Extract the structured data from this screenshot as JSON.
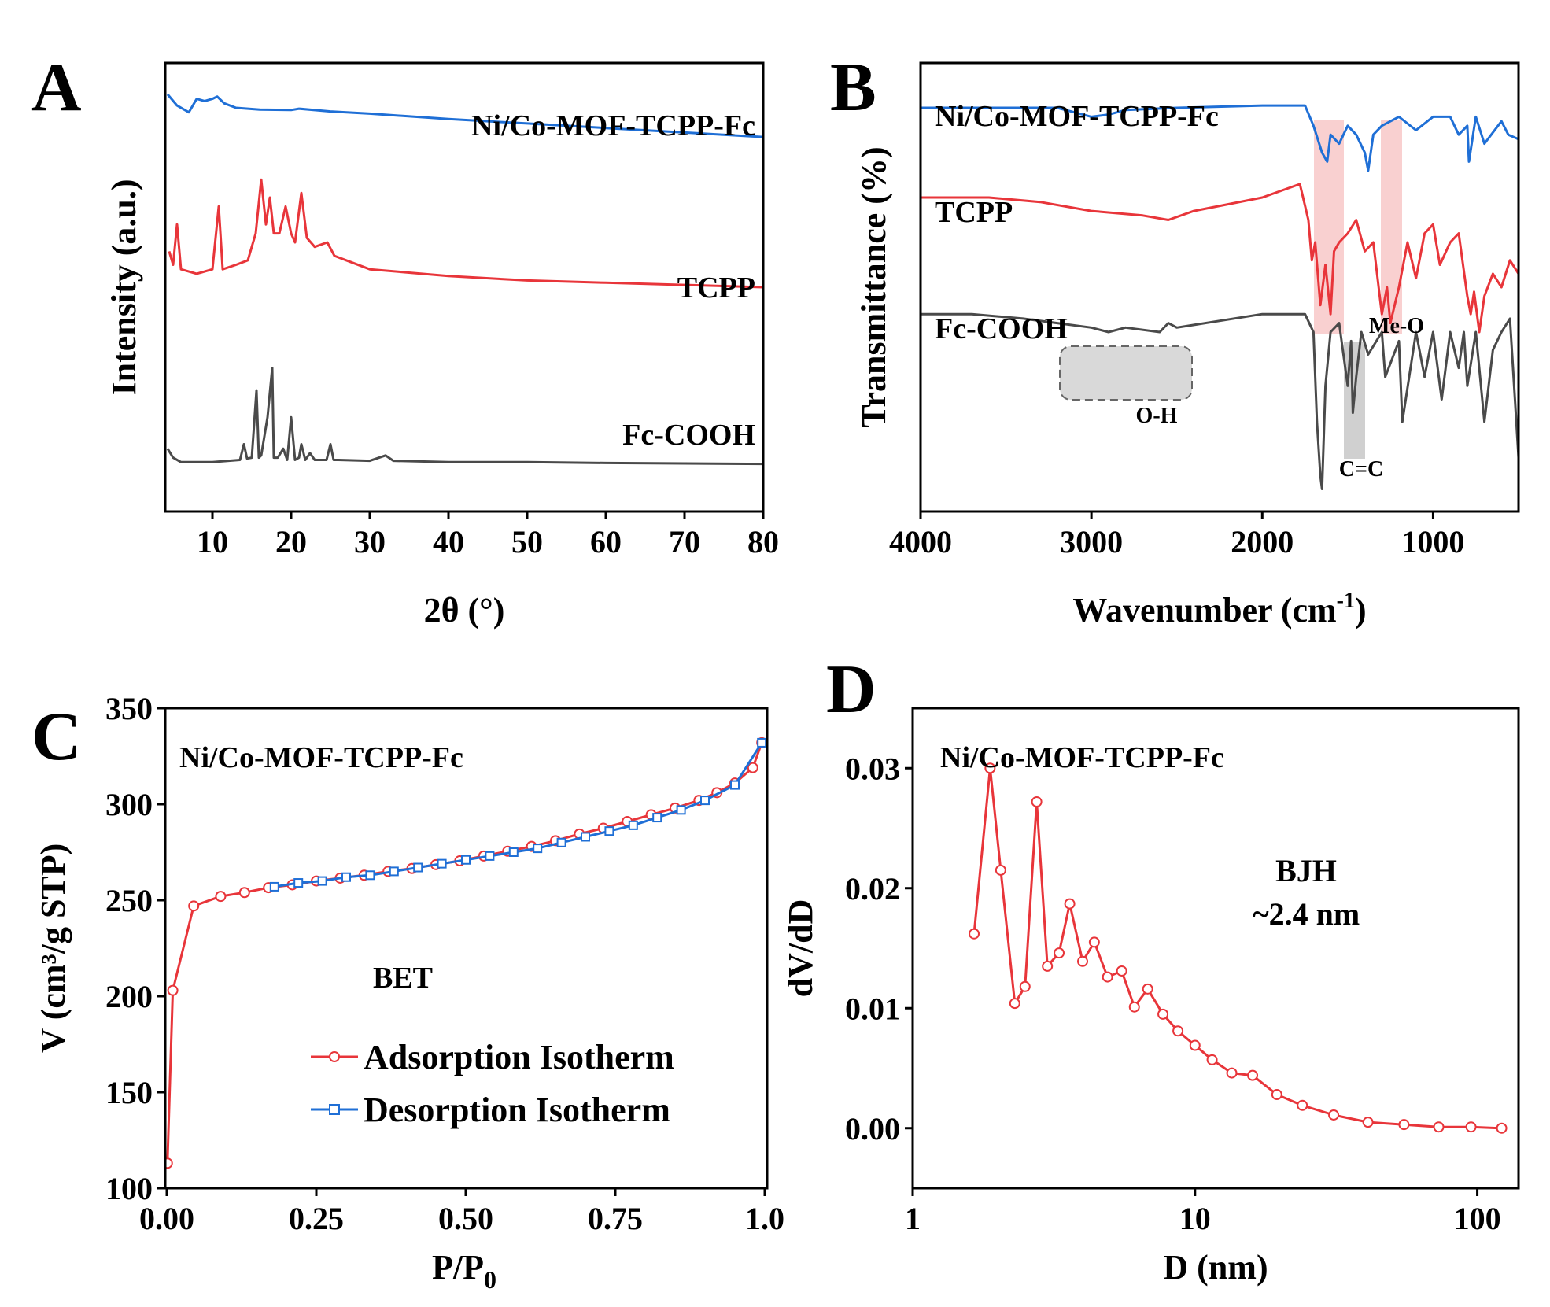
{
  "chart_data": [
    {
      "panel": "A",
      "type": "line",
      "xlabel": "2θ (°)",
      "ylabel": "Intensity (a.u.)",
      "xlim": [
        4,
        80
      ],
      "xticks": [
        10,
        20,
        30,
        40,
        50,
        60,
        70,
        80
      ],
      "ylim": [
        0,
        100
      ],
      "series": [
        {
          "name": "Ni/Co-MOF-TCPP-Fc",
          "color": "#1f6fd6",
          "x": [
            4.3,
            5.5,
            7,
            8,
            9,
            10,
            10.6,
            11.5,
            13,
            16,
            20,
            21,
            25,
            30,
            40,
            50,
            60,
            70,
            80
          ],
          "y": [
            93,
            90.5,
            89,
            92,
            91.5,
            92,
            92.5,
            91,
            90,
            89.6,
            89.5,
            89.8,
            89.2,
            88.7,
            87.5,
            86.5,
            85.5,
            84.5,
            83.5
          ]
        },
        {
          "name": "TCPP",
          "color": "#e8353a",
          "x": [
            4.5,
            5,
            5.5,
            6,
            8,
            10,
            10.8,
            11.3,
            13,
            14.5,
            15.5,
            16.2,
            16.8,
            17.3,
            17.8,
            18.5,
            19.3,
            20,
            20.5,
            21.3,
            22,
            23,
            24.6,
            25.5,
            27,
            30,
            40,
            50,
            60,
            70,
            80
          ],
          "y": [
            58,
            55,
            64,
            54,
            53,
            54,
            68,
            54,
            55,
            56,
            62,
            74,
            64,
            70,
            62,
            62,
            68,
            62,
            60,
            71,
            61,
            59,
            60,
            57,
            56,
            54,
            52.5,
            51.5,
            51,
            50.5,
            50
          ]
        },
        {
          "name": "Fc-COOH",
          "color": "#4a4a4a",
          "x": [
            4.3,
            5,
            6,
            10,
            13.5,
            14,
            14.4,
            15,
            15.6,
            15.9,
            16.2,
            17,
            17.6,
            17.8,
            18.3,
            19,
            19.5,
            20,
            20.5,
            21,
            21.3,
            21.8,
            22.4,
            23,
            24.5,
            25,
            25.4,
            26,
            30,
            32,
            33,
            40,
            50,
            60,
            70,
            80
          ],
          "y": [
            14,
            12,
            11,
            11,
            11.5,
            15,
            11.8,
            12,
            27,
            12,
            12.5,
            21,
            32,
            12,
            12,
            14,
            11.5,
            21,
            11.5,
            12,
            15,
            11.5,
            13,
            11.5,
            11.5,
            15,
            11.5,
            11.5,
            11.3,
            12.5,
            11.3,
            11,
            11,
            10.8,
            10.7,
            10.6
          ]
        }
      ]
    },
    {
      "panel": "B",
      "type": "line",
      "xlabel": "Wavenumber (cm",
      "xlabel_sup": "-1",
      "xlabel_close": ")",
      "ylabel": "Transmittance (%)",
      "xlim": [
        4000,
        500
      ],
      "xticks": [
        4000,
        3000,
        2000,
        1000
      ],
      "ylim": [
        0,
        100
      ],
      "series": [
        {
          "name": "Ni/Co-MOF-TCPP-Fc",
          "color": "#1f6fd6",
          "x": [
            4000,
            3700,
            3200,
            3100,
            3000,
            2900,
            2800,
            2500,
            2000,
            1750,
            1700,
            1650,
            1620,
            1600,
            1550,
            1500,
            1450,
            1400,
            1380,
            1350,
            1300,
            1200,
            1100,
            1000,
            900,
            850,
            800,
            790,
            750,
            700,
            600,
            560,
            500
          ],
          "y": [
            90,
            90,
            90,
            89,
            88,
            88.5,
            89.5,
            90,
            90.5,
            90.5,
            86,
            80,
            78,
            84,
            82,
            86,
            84,
            80,
            76,
            84,
            86,
            88,
            85,
            88,
            88,
            84,
            86,
            78,
            88,
            82,
            87,
            84,
            83
          ]
        },
        {
          "name": "TCPP",
          "color": "#e8353a",
          "x": [
            4000,
            3700,
            3600,
            3300,
            3000,
            2700,
            2550,
            2400,
            2000,
            1780,
            1730,
            1710,
            1690,
            1660,
            1630,
            1600,
            1580,
            1550,
            1500,
            1450,
            1400,
            1350,
            1300,
            1270,
            1250,
            1200,
            1150,
            1100,
            1050,
            1000,
            960,
            900,
            850,
            800,
            780,
            760,
            730,
            700,
            650,
            600,
            550,
            500
          ],
          "y": [
            70,
            70,
            70,
            69,
            67,
            66,
            65,
            67,
            70,
            73,
            65,
            56,
            60,
            46,
            55,
            44,
            58,
            60,
            62,
            65,
            58,
            60,
            44,
            50,
            42,
            50,
            60,
            52,
            62,
            64,
            55,
            60,
            62,
            48,
            44,
            49,
            40,
            48,
            53,
            50,
            56,
            53
          ]
        },
        {
          "name": "Fc-COOH",
          "color": "#4a4a4a",
          "x": [
            4000,
            3700,
            3400,
            3200,
            3000,
            2900,
            2800,
            2600,
            2550,
            2500,
            2000,
            1750,
            1700,
            1680,
            1660,
            1650,
            1630,
            1600,
            1550,
            1500,
            1480,
            1470,
            1450,
            1420,
            1380,
            1300,
            1280,
            1200,
            1180,
            1100,
            1050,
            1000,
            950,
            900,
            850,
            820,
            800,
            750,
            700,
            650,
            600,
            550,
            500
          ],
          "y": [
            44,
            44,
            43,
            42,
            41,
            40,
            41,
            40,
            42,
            41,
            44,
            44,
            40,
            20,
            8,
            5,
            28,
            40,
            42,
            28,
            38,
            22,
            30,
            40,
            35,
            40,
            30,
            38,
            20,
            40,
            30,
            40,
            25,
            40,
            32,
            40,
            28,
            40,
            20,
            36,
            40,
            43,
            12
          ]
        }
      ],
      "annotations": [
        {
          "text": "Me-O"
        },
        {
          "text": "O-H"
        },
        {
          "text": "C=C"
        }
      ]
    },
    {
      "panel": "C",
      "type": "line",
      "title": "Ni/Co-MOF-TCPP-Fc",
      "annotation": "BET",
      "xlabel": "P/P",
      "xlabel_sub": "0",
      "ylabel": "V (cm³/g STP)",
      "xlim": [
        0,
        1
      ],
      "ylim": [
        100,
        350
      ],
      "xticks": [
        "0.00",
        "0.25",
        "0.50",
        "0.75",
        "1.0"
      ],
      "yticks": [
        100,
        150,
        200,
        250,
        300,
        350
      ],
      "legend_position": "bottom-right",
      "series": [
        {
          "name": "Adsorption Isotherm",
          "color": "#e8353a",
          "marker": "circle",
          "x": [
            0.001,
            0.01,
            0.045,
            0.09,
            0.13,
            0.17,
            0.21,
            0.25,
            0.29,
            0.33,
            0.37,
            0.41,
            0.45,
            0.49,
            0.53,
            0.57,
            0.61,
            0.65,
            0.69,
            0.73,
            0.77,
            0.81,
            0.85,
            0.89,
            0.92,
            0.95,
            0.98,
            0.995
          ],
          "y": [
            113,
            203,
            247,
            252,
            254,
            256.5,
            258,
            260,
            261.5,
            263,
            265,
            266.5,
            268.5,
            270.5,
            273,
            275.5,
            278,
            281,
            284.5,
            287.5,
            291,
            294.5,
            298,
            302,
            306,
            311,
            319,
            332
          ]
        },
        {
          "name": "Desorption Isotherm",
          "color": "#1f6fd6",
          "marker": "square",
          "x": [
            0.995,
            0.95,
            0.9,
            0.86,
            0.82,
            0.78,
            0.74,
            0.7,
            0.66,
            0.62,
            0.58,
            0.54,
            0.5,
            0.46,
            0.42,
            0.38,
            0.34,
            0.3,
            0.26,
            0.22,
            0.18
          ],
          "y": [
            332,
            310,
            302,
            297,
            293,
            289,
            286,
            283,
            280,
            277,
            275,
            273,
            271,
            269,
            267,
            265,
            263,
            262,
            260,
            259,
            257
          ]
        }
      ]
    },
    {
      "panel": "D",
      "type": "line",
      "title": "Ni/Co-MOF-TCPP-Fc",
      "annotation_line1": "BJH",
      "annotation_line2": "~2.4 nm",
      "xlabel": "D (nm)",
      "ylabel": "dV/dD",
      "xscale": "log",
      "xlim": [
        1,
        140
      ],
      "ylim": [
        -0.005,
        0.035
      ],
      "xticks": [
        "1",
        "10",
        "100"
      ],
      "yticks": [
        "0.00",
        "0.01",
        "0.02",
        "0.03"
      ],
      "series": [
        {
          "name": "Ni/Co-MOF-TCPP-Fc",
          "color": "#e8353a",
          "marker": "circle",
          "x": [
            1.65,
            1.88,
            2.05,
            2.3,
            2.5,
            2.75,
            3.0,
            3.3,
            3.6,
            4.0,
            4.4,
            4.9,
            5.5,
            6.1,
            6.8,
            7.7,
            8.7,
            10.0,
            11.5,
            13.5,
            16,
            19.5,
            24,
            31,
            41,
            55,
            73,
            95,
            122
          ],
          "y": [
            0.0162,
            0.03,
            0.0215,
            0.0104,
            0.0118,
            0.0272,
            0.0135,
            0.0146,
            0.0187,
            0.0139,
            0.0155,
            0.0126,
            0.0131,
            0.0101,
            0.0116,
            0.0095,
            0.0081,
            0.0069,
            0.0057,
            0.0046,
            0.0044,
            0.0028,
            0.0019,
            0.0011,
            0.0005,
            0.0003,
            0.0001,
            0.0001,
            0.0
          ]
        }
      ]
    }
  ]
}
